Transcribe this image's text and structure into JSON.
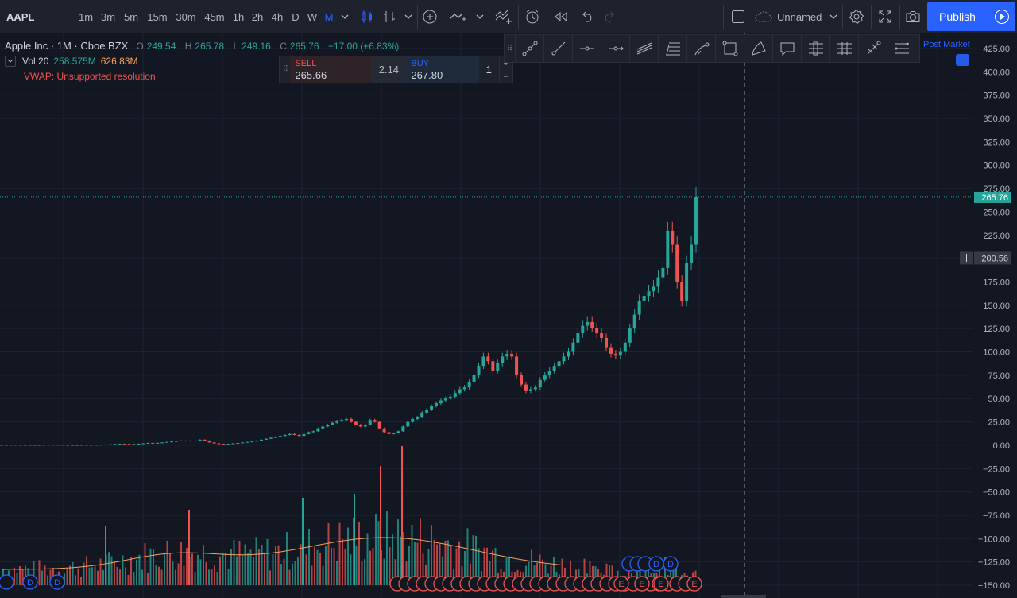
{
  "toolbar": {
    "symbol": "AAPL",
    "intervals": [
      "1m",
      "3m",
      "5m",
      "15m",
      "30m",
      "45m",
      "1h",
      "2h",
      "4h",
      "D",
      "W",
      "M"
    ],
    "active_interval": "M",
    "layout_name": "Unnamed",
    "publish_label": "Publish",
    "icons": [
      "chevron-down-icon",
      "candles-icon",
      "indicators-icon",
      "add-icon",
      "compare-icon",
      "templates-icon",
      "alert-icon",
      "replay-icon",
      "undo-icon",
      "redo-icon",
      "layout-icon",
      "cloud-icon",
      "gear-icon",
      "fullscreen-icon",
      "camera-icon",
      "play-icon"
    ]
  },
  "legend": {
    "title": "Apple Inc · 1M · Cboe BZX",
    "open_label": "O",
    "open": "249.54",
    "high_label": "H",
    "high": "265.78",
    "low_label": "L",
    "low": "249.16",
    "close_label": "C",
    "close": "265.76",
    "change": "+17.00 (+6.83%)",
    "vol_label": "Vol 20",
    "vol_value": "258.575M",
    "vol_ma": "626.83M",
    "vwap_text": "VWAP: Unsupported resolution"
  },
  "trade": {
    "sell_label": "SELL",
    "sell_price": "265.66",
    "spread": "2.14",
    "buy_label": "BUY",
    "buy_price": "267.80",
    "quantity": "1",
    "plus": "+",
    "minus": "−"
  },
  "drawing_tools": [
    "trend-line-icon",
    "ray-icon",
    "horizontal-line-icon",
    "horizontal-ray-icon",
    "parallel-channel-icon",
    "fib-retracement-icon",
    "brush-icon",
    "rectangle-icon",
    "path-icon",
    "callout-icon",
    "fork-icon",
    "pitchfork-icon",
    "measure-icon",
    "lines-icon"
  ],
  "post_market": "Post Market",
  "price_axis": {
    "ticks": [
      "425.00",
      "400.00",
      "375.00",
      "350.00",
      "325.00",
      "300.00",
      "275.00",
      "250.00",
      "225.00",
      "200.00",
      "175.00",
      "150.00",
      "125.00",
      "100.00",
      "75.00",
      "50.00",
      "25.00",
      "0.00",
      "−25.00",
      "−50.00",
      "−75.00",
      "−100.00",
      "−125.00",
      "−150.00"
    ],
    "last_price_label": "265.76",
    "crosshair_label": "200.56"
  },
  "events": {
    "dividend_marker": "D",
    "earnings_marker": "E"
  },
  "colors": {
    "background": "#131722",
    "up": "#26a69a",
    "down": "#ef5350",
    "accent": "#2962ff",
    "grid": "#1f2330",
    "volume_ma": "#f7a35c"
  },
  "chart_data": {
    "type": "candlestick",
    "symbol": "AAPL",
    "interval": "1M",
    "ylim": [
      -150,
      425
    ],
    "series": [
      {
        "name": "price_close",
        "values": [
          0.4,
          0.4,
          0.5,
          0.5,
          0.4,
          0.4,
          0.4,
          0.3,
          0.4,
          0.5,
          0.6,
          0.5,
          0.5,
          0.4,
          0.3,
          0.3,
          0.3,
          0.4,
          0.5,
          0.5,
          0.5,
          0.6,
          0.8,
          1.0,
          1.3,
          1.5,
          1.4,
          1.2,
          1.3,
          1.6,
          2.0,
          2.5,
          2.2,
          2.6,
          3.0,
          3.5,
          4,
          4.5,
          5,
          5,
          4.5,
          5,
          6,
          5,
          3,
          2,
          1.5,
          1.2,
          1.5,
          2,
          2.5,
          3,
          3.5,
          4,
          5,
          6,
          7,
          8,
          9,
          10,
          11,
          12,
          11,
          10,
          12,
          14,
          15,
          18,
          20,
          22,
          24,
          26,
          27,
          28,
          25,
          22,
          20,
          22,
          27,
          25,
          18,
          14,
          12,
          13,
          15,
          20,
          25,
          28,
          30,
          35,
          38,
          42,
          45,
          48,
          50,
          52,
          56,
          60,
          62,
          68,
          75,
          85,
          95,
          90,
          80,
          88,
          95,
          98,
          95,
          75,
          65,
          58,
          60,
          62,
          70,
          75,
          80,
          85,
          90,
          95,
          100,
          110,
          120,
          128,
          132,
          126,
          120,
          115,
          105,
          98,
          96,
          100,
          110,
          125,
          140,
          155,
          160,
          165,
          170,
          180,
          190,
          230,
          215,
          175,
          155,
          195,
          215,
          265.76
        ]
      }
    ]
  }
}
